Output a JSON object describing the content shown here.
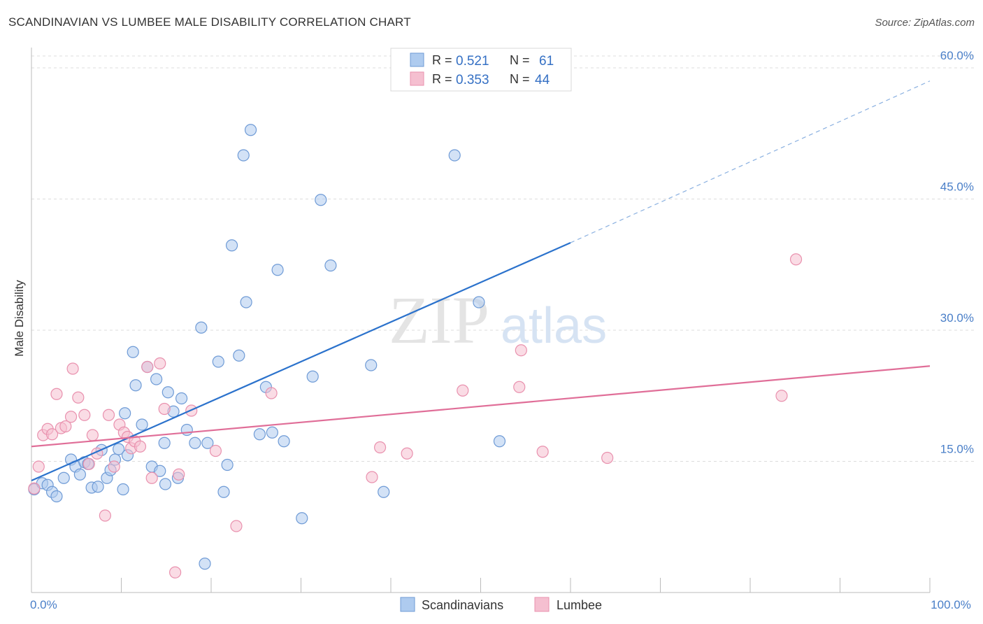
{
  "title": "SCANDINAVIAN VS LUMBEE MALE DISABILITY CORRELATION CHART",
  "source": "Source: ZipAtlas.com",
  "watermark": {
    "zip": "ZIP",
    "atlas": "atlas"
  },
  "colors": {
    "scandinavian_fill": "#aecbef",
    "scandinavian_stroke": "#6f9bd6",
    "scandinavian_line": "#2b72cc",
    "lumbee_fill": "#f5bfd0",
    "lumbee_stroke": "#e991ae",
    "lumbee_line": "#e06e98",
    "tick_label": "#4a7fc8",
    "grid": "#dddddd"
  },
  "legend": {
    "r_label": "R =",
    "n_label": "N =",
    "rows": [
      {
        "series": "Scandinavians",
        "r": "0.521",
        "n": "61"
      },
      {
        "series": "Lumbee",
        "r": "0.353",
        "n": "44"
      }
    ]
  },
  "chart_data": {
    "type": "scatter",
    "title": "SCANDINAVIAN VS LUMBEE MALE DISABILITY CORRELATION CHART",
    "xlabel": "",
    "ylabel": "Male Disability",
    "xlim": [
      0,
      100
    ],
    "ylim": [
      0,
      60
    ],
    "x_tick_labels": [
      {
        "value": 0,
        "label": "0.0%"
      },
      {
        "value": 100,
        "label": "100.0%"
      }
    ],
    "y_tick_labels": [
      {
        "value": 15,
        "label": "15.0%"
      },
      {
        "value": 30,
        "label": "30.0%"
      },
      {
        "value": 45,
        "label": "45.0%"
      },
      {
        "value": 60,
        "label": "60.0%"
      }
    ],
    "grid": true,
    "legend_position": "top-center",
    "series": [
      {
        "name": "Scandinavians",
        "r": 0.521,
        "n": 61,
        "trend": {
          "x0": 0,
          "y0": 12.8,
          "x1": 60,
          "y1": 40.0,
          "dashed_to_x": 100,
          "dashed_to_y": 58.5
        },
        "points": [
          [
            0.3,
            11.8
          ],
          [
            1.2,
            12.5
          ],
          [
            1.8,
            12.3
          ],
          [
            2.3,
            11.5
          ],
          [
            2.8,
            11.0
          ],
          [
            3.6,
            13.1
          ],
          [
            4.4,
            15.2
          ],
          [
            4.9,
            14.4
          ],
          [
            5.4,
            13.5
          ],
          [
            5.9,
            14.9
          ],
          [
            6.3,
            14.7
          ],
          [
            6.7,
            12.0
          ],
          [
            7.4,
            12.1
          ],
          [
            7.8,
            16.3
          ],
          [
            8.4,
            13.1
          ],
          [
            8.8,
            14.0
          ],
          [
            9.3,
            15.2
          ],
          [
            9.7,
            16.4
          ],
          [
            10.2,
            11.8
          ],
          [
            10.7,
            15.7
          ],
          [
            11.3,
            27.5
          ],
          [
            11.6,
            23.7
          ],
          [
            12.3,
            19.2
          ],
          [
            12.9,
            25.8
          ],
          [
            13.4,
            14.4
          ],
          [
            13.9,
            24.4
          ],
          [
            14.3,
            13.9
          ],
          [
            14.8,
            17.1
          ],
          [
            15.2,
            22.9
          ],
          [
            15.8,
            20.7
          ],
          [
            16.3,
            13.1
          ],
          [
            16.7,
            22.2
          ],
          [
            17.3,
            18.6
          ],
          [
            18.2,
            17.1
          ],
          [
            18.9,
            30.3
          ],
          [
            19.6,
            17.1
          ],
          [
            20.8,
            26.4
          ],
          [
            21.4,
            11.5
          ],
          [
            21.8,
            14.6
          ],
          [
            22.3,
            39.7
          ],
          [
            23.1,
            27.1
          ],
          [
            23.6,
            50.0
          ],
          [
            23.9,
            33.2
          ],
          [
            24.4,
            52.9
          ],
          [
            25.4,
            18.1
          ],
          [
            26.1,
            23.5
          ],
          [
            26.8,
            18.3
          ],
          [
            27.4,
            36.9
          ],
          [
            28.1,
            17.3
          ],
          [
            30.1,
            8.5
          ],
          [
            31.3,
            24.7
          ],
          [
            32.2,
            44.9
          ],
          [
            33.3,
            37.4
          ],
          [
            37.8,
            26.0
          ],
          [
            39.2,
            11.5
          ],
          [
            47.1,
            50.0
          ],
          [
            49.8,
            33.2
          ],
          [
            52.1,
            17.3
          ],
          [
            19.3,
            3.3
          ],
          [
            14.9,
            12.4
          ],
          [
            10.4,
            20.5
          ]
        ]
      },
      {
        "name": "Lumbee",
        "r": 0.353,
        "n": 44,
        "trend": {
          "x0": 0,
          "y0": 16.7,
          "x1": 100,
          "y1": 25.9
        },
        "points": [
          [
            0.3,
            11.9
          ],
          [
            0.8,
            14.4
          ],
          [
            1.3,
            18.0
          ],
          [
            1.8,
            18.7
          ],
          [
            2.3,
            18.1
          ],
          [
            2.8,
            22.7
          ],
          [
            3.3,
            18.8
          ],
          [
            3.8,
            19.0
          ],
          [
            4.4,
            20.1
          ],
          [
            4.6,
            25.6
          ],
          [
            5.2,
            22.3
          ],
          [
            5.9,
            20.3
          ],
          [
            6.4,
            14.7
          ],
          [
            6.8,
            18.0
          ],
          [
            7.3,
            15.9
          ],
          [
            8.2,
            8.8
          ],
          [
            8.6,
            20.3
          ],
          [
            9.2,
            14.4
          ],
          [
            9.8,
            19.2
          ],
          [
            10.3,
            18.3
          ],
          [
            10.7,
            17.8
          ],
          [
            11.1,
            16.5
          ],
          [
            11.5,
            17.3
          ],
          [
            12.1,
            16.7
          ],
          [
            12.9,
            25.8
          ],
          [
            13.4,
            13.1
          ],
          [
            14.3,
            26.2
          ],
          [
            14.8,
            21.0
          ],
          [
            16.0,
            2.3
          ],
          [
            16.4,
            13.5
          ],
          [
            17.8,
            20.8
          ],
          [
            20.5,
            16.2
          ],
          [
            22.8,
            7.6
          ],
          [
            26.7,
            22.8
          ],
          [
            37.9,
            13.2
          ],
          [
            38.8,
            16.6
          ],
          [
            41.8,
            15.9
          ],
          [
            48.0,
            23.1
          ],
          [
            54.3,
            23.5
          ],
          [
            54.5,
            27.7
          ],
          [
            56.9,
            16.1
          ],
          [
            64.1,
            15.4
          ],
          [
            83.5,
            22.5
          ],
          [
            85.1,
            38.1
          ]
        ]
      }
    ]
  }
}
